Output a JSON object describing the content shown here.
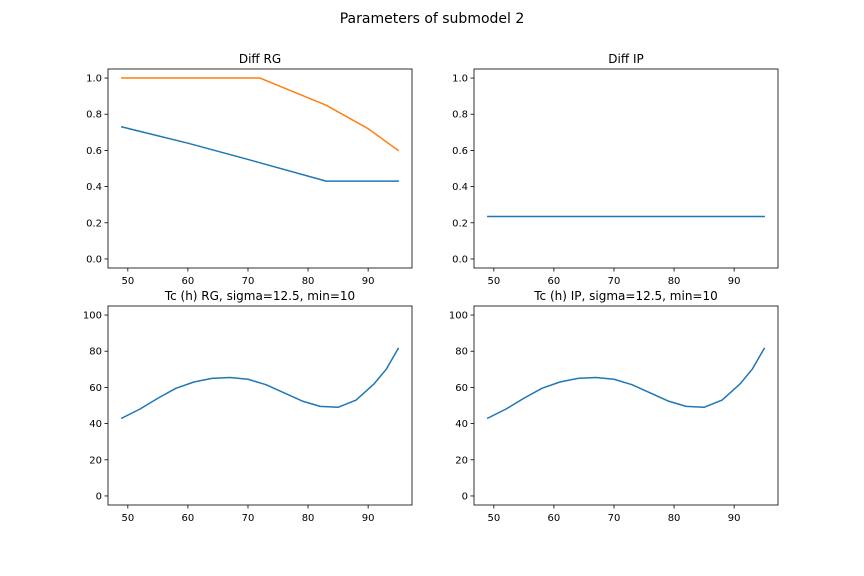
{
  "figure": {
    "suptitle": "Parameters of submodel 2"
  },
  "colors": {
    "c0": "#1f77b4",
    "c1": "#ff7f0e"
  },
  "chart_data": [
    {
      "type": "line",
      "title": "Diff RG",
      "xlabel": "",
      "ylabel": "",
      "xlim": [
        46.7,
        97.3
      ],
      "ylim": [
        -0.05,
        1.05
      ],
      "xticks": [
        50,
        60,
        70,
        80,
        90
      ],
      "yticks": [
        0.0,
        0.2,
        0.4,
        0.6,
        0.8,
        1.0
      ],
      "ytick_labels": [
        "0.0",
        "0.2",
        "0.4",
        "0.6",
        "0.8",
        "1.0"
      ],
      "grid": false,
      "series": [
        {
          "color_key": "c0",
          "x": [
            49,
            60,
            70,
            83,
            84,
            90,
            95
          ],
          "y": [
            0.73,
            0.64,
            0.55,
            0.43,
            0.43,
            0.43,
            0.43
          ]
        },
        {
          "color_key": "c1",
          "x": [
            49,
            60,
            72,
            83,
            90,
            95
          ],
          "y": [
            1.0,
            1.0,
            1.0,
            0.85,
            0.72,
            0.6
          ]
        }
      ]
    },
    {
      "type": "line",
      "title": "Diff IP",
      "xlabel": "",
      "ylabel": "",
      "xlim": [
        46.7,
        97.3
      ],
      "ylim": [
        -0.05,
        1.05
      ],
      "xticks": [
        50,
        60,
        70,
        80,
        90
      ],
      "yticks": [
        0.0,
        0.2,
        0.4,
        0.6,
        0.8,
        1.0
      ],
      "ytick_labels": [
        "0.0",
        "0.2",
        "0.4",
        "0.6",
        "0.8",
        "1.0"
      ],
      "grid": false,
      "series": [
        {
          "color_key": "c0",
          "x": [
            49,
            95
          ],
          "y": [
            0.235,
            0.235
          ]
        }
      ]
    },
    {
      "type": "line",
      "title": "Tc (h) RG, sigma=12.5, min=10",
      "xlabel": "",
      "ylabel": "",
      "xlim": [
        46.7,
        97.3
      ],
      "ylim": [
        -5,
        105
      ],
      "xticks": [
        50,
        60,
        70,
        80,
        90
      ],
      "yticks": [
        0,
        20,
        40,
        60,
        80,
        100
      ],
      "ytick_labels": [
        "0",
        "20",
        "40",
        "60",
        "80",
        "100"
      ],
      "grid": false,
      "series": [
        {
          "color_key": "c0",
          "x": [
            49,
            52,
            55,
            58,
            61,
            64,
            67,
            70,
            73,
            76,
            79,
            82,
            85,
            88,
            91,
            93,
            95
          ],
          "y": [
            43,
            48,
            54,
            59.5,
            63,
            65,
            65.5,
            64.5,
            61.5,
            57,
            52.5,
            49.5,
            49,
            53,
            62,
            70,
            81.5
          ]
        }
      ]
    },
    {
      "type": "line",
      "title": "Tc (h) IP, sigma=12.5, min=10",
      "xlabel": "",
      "ylabel": "",
      "xlim": [
        46.7,
        97.3
      ],
      "ylim": [
        -5,
        105
      ],
      "xticks": [
        50,
        60,
        70,
        80,
        90
      ],
      "yticks": [
        0,
        20,
        40,
        60,
        80,
        100
      ],
      "ytick_labels": [
        "0",
        "20",
        "40",
        "60",
        "80",
        "100"
      ],
      "grid": false,
      "series": [
        {
          "color_key": "c0",
          "x": [
            49,
            52,
            55,
            58,
            61,
            64,
            67,
            70,
            73,
            76,
            79,
            82,
            85,
            88,
            91,
            93,
            95
          ],
          "y": [
            43,
            48,
            54,
            59.5,
            63,
            65,
            65.5,
            64.5,
            61.5,
            57,
            52.5,
            49.5,
            49,
            53,
            62,
            70,
            81.5
          ]
        }
      ]
    }
  ]
}
